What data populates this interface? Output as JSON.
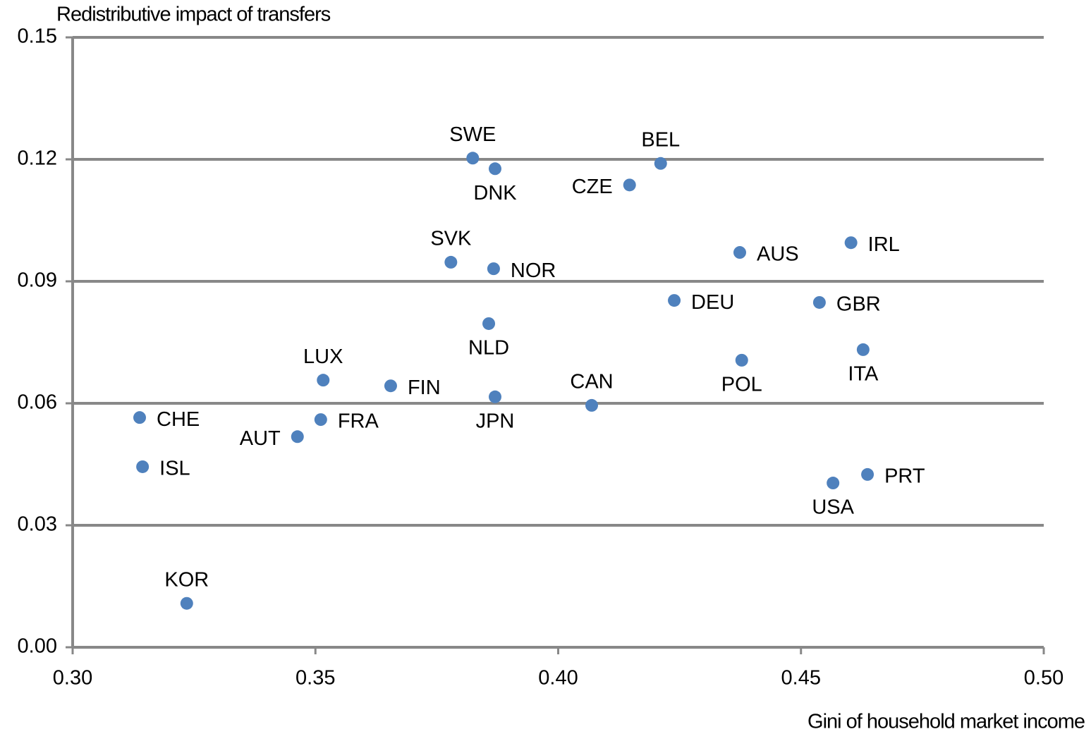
{
  "chart_data": {
    "type": "scatter",
    "y_label": "Redistributive impact of transfers",
    "x_label": "Gini of household market income",
    "color": "#4f81bd",
    "xlim": [
      0.3,
      0.5
    ],
    "xticks": [
      {
        "value": 0.3,
        "label": "0.30"
      },
      {
        "value": 0.35,
        "label": "0.35"
      },
      {
        "value": 0.4,
        "label": "0.40"
      },
      {
        "value": 0.45,
        "label": "0.45"
      },
      {
        "value": 0.5,
        "label": "0.50"
      }
    ],
    "ylim": [
      0,
      0.15
    ],
    "yticks": [
      {
        "value": 0,
        "label": "0.00"
      },
      {
        "value": 0.03,
        "label": "0.03"
      },
      {
        "value": 0.06,
        "label": "0.06"
      },
      {
        "value": 0.09,
        "label": "0.09"
      },
      {
        "value": 0.12,
        "label": "0.12"
      },
      {
        "value": 0.15,
        "label": "0.15"
      }
    ],
    "grid": true,
    "labels": [
      "SWE",
      "DNK",
      "BEL",
      "CZE",
      "SVK",
      "NOR",
      "AUS",
      "IRL",
      "DEU",
      "GBR",
      "NLD",
      "ITA",
      "POL",
      "LUX",
      "FIN",
      "JPN",
      "CAN",
      "CHE",
      "FRA",
      "AUT",
      "ISL",
      "PRT",
      "USA",
      "KOR"
    ],
    "x": [
      0.3824,
      0.387,
      0.4211,
      0.4147,
      0.3779,
      0.3867,
      0.4374,
      0.4603,
      0.4239,
      0.4538,
      0.3857,
      0.4628,
      0.4378,
      0.3516,
      0.3655,
      0.387,
      0.4069,
      0.3138,
      0.3511,
      0.3463,
      0.3144,
      0.4637,
      0.4566,
      0.3235
    ],
    "y": [
      0.1203,
      0.1177,
      0.119,
      0.1137,
      0.0947,
      0.0931,
      0.0971,
      0.0995,
      0.0853,
      0.0848,
      0.0796,
      0.0732,
      0.0706,
      0.0657,
      0.0643,
      0.0616,
      0.0595,
      0.0565,
      0.056,
      0.0518,
      0.0444,
      0.0425,
      0.0404,
      0.0108
    ]
  }
}
